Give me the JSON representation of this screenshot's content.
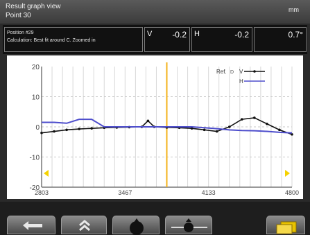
{
  "header": {
    "title": "Result graph view",
    "subtitle": "Point 30",
    "unit": "mm"
  },
  "info": {
    "line1": "Position #29",
    "line2": "Calculation: Best fit around C. Zoomed in",
    "v_label": "V",
    "v_value": "-0.2",
    "h_label": "H",
    "h_value": "-0.2",
    "c_value": "0.7°"
  },
  "legend": {
    "ref_label": "Ref.",
    "ref_value": "D",
    "v_label": "V",
    "h_label": "H"
  },
  "colors": {
    "v_series": "#111111",
    "h_series": "#4d4dcc",
    "cursor": "#f3b21a",
    "arrow": "#f5d200"
  },
  "toolbar": {
    "buttons": [
      "back-arrow-icon",
      "double-chevron-up-icon",
      "target-icon",
      "slider-icon",
      "folder-icon"
    ]
  },
  "chart_data": {
    "type": "line",
    "x_ticks": [
      "2803",
      "3467",
      "4133",
      "4800"
    ],
    "y_ticks": [
      "20",
      "10",
      "0",
      "-10",
      "-20"
    ],
    "ylim": [
      -20,
      20
    ],
    "xlim": [
      0,
      40
    ],
    "cursor_x": 20,
    "series": [
      {
        "name": "V",
        "x": [
          0,
          2,
          4,
          6,
          8,
          10,
          12,
          14,
          16,
          17,
          18,
          20,
          22,
          24,
          26,
          28,
          30,
          32,
          34,
          36,
          38,
          40
        ],
        "values": [
          -2,
          -1.5,
          -1,
          -0.7,
          -0.5,
          -0.3,
          -0.2,
          -0.1,
          0,
          2,
          0,
          -0.2,
          -0.3,
          -0.5,
          -1,
          -1.5,
          0,
          2.5,
          3,
          1,
          -1,
          -2.5
        ]
      },
      {
        "name": "H",
        "x": [
          0,
          2,
          4,
          6,
          8,
          10,
          12,
          14,
          16,
          18,
          20,
          22,
          24,
          26,
          28,
          30,
          32,
          34,
          36,
          38,
          40
        ],
        "values": [
          1.5,
          1.5,
          1.2,
          2.5,
          2.5,
          0,
          0,
          0,
          0,
          0,
          0,
          0,
          0,
          -0.3,
          -0.6,
          -1,
          -1.2,
          -1.3,
          -1.5,
          -1.8,
          -2
        ]
      }
    ]
  }
}
